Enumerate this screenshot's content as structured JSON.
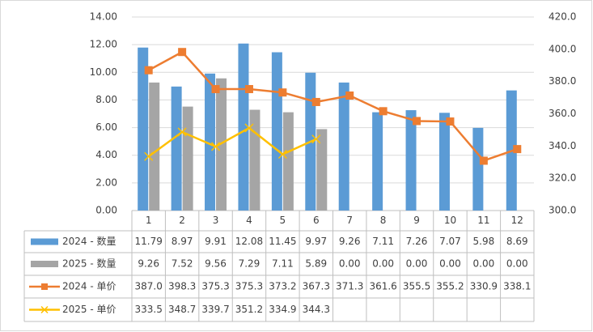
{
  "chart_data": {
    "type": "bar-line",
    "categories": [
      "1",
      "2",
      "3",
      "4",
      "5",
      "6",
      "7",
      "8",
      "9",
      "10",
      "11",
      "12"
    ],
    "series": [
      {
        "name": "2024 - 数量",
        "color": "#5b9bd5",
        "kind": "bar",
        "axis": "y",
        "values": [
          11.79,
          8.97,
          9.91,
          12.08,
          11.45,
          9.97,
          9.26,
          7.11,
          7.26,
          7.07,
          5.98,
          8.69
        ],
        "value_labels": [
          "11.79",
          "8.97",
          "9.91",
          "12.08",
          "11.45",
          "9.97",
          "9.26",
          "7.11",
          "7.26",
          "7.07",
          "5.98",
          "8.69"
        ]
      },
      {
        "name": "2025 - 数量",
        "color": "#a5a5a5",
        "kind": "bar",
        "axis": "y",
        "values": [
          9.26,
          7.52,
          9.56,
          7.29,
          7.11,
          5.89,
          0,
          0,
          0,
          0,
          0,
          0
        ],
        "value_labels": [
          "9.26",
          "7.52",
          "9.56",
          "7.29",
          "7.11",
          "5.89",
          "0.00",
          "0.00",
          "0.00",
          "0.00",
          "0.00",
          "0.00"
        ]
      },
      {
        "name": "2024 - 单价",
        "color": "#ed7d31",
        "kind": "line",
        "marker": "square",
        "axis": "y2",
        "values": [
          387,
          398.3,
          375.3,
          375.3,
          373.2,
          367.3,
          371.3,
          361.6,
          355.5,
          355.2,
          330.9,
          338.1
        ],
        "value_labels": [
          "387.0",
          "398.3",
          "375.3",
          "375.3",
          "373.2",
          "367.3",
          "371.3",
          "361.6",
          "355.5",
          "355.2",
          "330.9",
          "338.1"
        ]
      },
      {
        "name": "2025 - 单价",
        "color": "#ffc000",
        "kind": "line",
        "marker": "x",
        "axis": "y2",
        "values": [
          333.5,
          348.7,
          339.7,
          351.2,
          334.9,
          344.3,
          null,
          null,
          null,
          null,
          null,
          null
        ],
        "value_labels": [
          "333.5",
          "348.7",
          "339.7",
          "351.2",
          "334.9",
          "344.3",
          null,
          null,
          null,
          null,
          null,
          null
        ]
      }
    ],
    "ylim": [
      0,
      14
    ],
    "yticks": [
      {
        "value": 0,
        "label": "0.00"
      },
      {
        "value": 2,
        "label": "2.00"
      },
      {
        "value": 4,
        "label": "4.00"
      },
      {
        "value": 6,
        "label": "6.00"
      },
      {
        "value": 8,
        "label": "8.00"
      },
      {
        "value": 10,
        "label": "10.00"
      },
      {
        "value": 12,
        "label": "12.00"
      },
      {
        "value": 14,
        "label": "14.00"
      }
    ],
    "y2lim": [
      300,
      420
    ],
    "y2ticks": [
      {
        "value": 300,
        "label": "300.0"
      },
      {
        "value": 320,
        "label": "320.0"
      },
      {
        "value": 340,
        "label": "340.0"
      },
      {
        "value": 360,
        "label": "360.0"
      },
      {
        "value": 380,
        "label": "380.0"
      },
      {
        "value": 400,
        "label": "400.0"
      },
      {
        "value": 420,
        "label": "420.0"
      }
    ],
    "grid": true
  }
}
